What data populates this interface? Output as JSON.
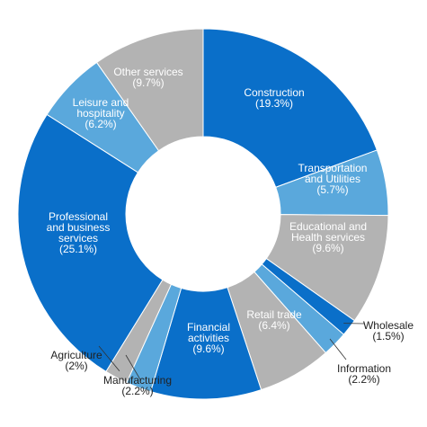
{
  "chart_data": {
    "type": "donut",
    "categories": [
      "Construction",
      "Transportation\nand Utilities",
      "Educational and\nHealth services",
      "Wholesale",
      "Information",
      "Retail trade",
      "Financial\nactivities",
      "Manufacturing",
      "Agriculture",
      "Professional\nand business\nservices",
      "Leisure and\nhospitality",
      "Other services"
    ],
    "values": [
      19.3,
      5.7,
      9.6,
      1.5,
      2.2,
      6.4,
      9.6,
      2.2,
      2,
      25.1,
      6.2,
      9.7
    ],
    "value_labels": [
      "(19.3%)",
      "(5.7%)",
      "(9.6%)",
      "(1.5%)",
      "(2.2%)",
      "(6.4%)",
      "(9.6%)",
      "(2.2%)",
      "(2%)",
      "(25.1%)",
      "(6.2%)",
      "(9.7%)"
    ],
    "colors": [
      "#0a6fc9",
      "#5aa8dc",
      "#b3b3b3",
      "#0a6fc9",
      "#5aa8dc",
      "#b3b3b3",
      "#0a6fc9",
      "#5aa8dc",
      "#b3b3b3",
      "#0a6fc9",
      "#5aa8dc",
      "#b3b3b3"
    ]
  }
}
